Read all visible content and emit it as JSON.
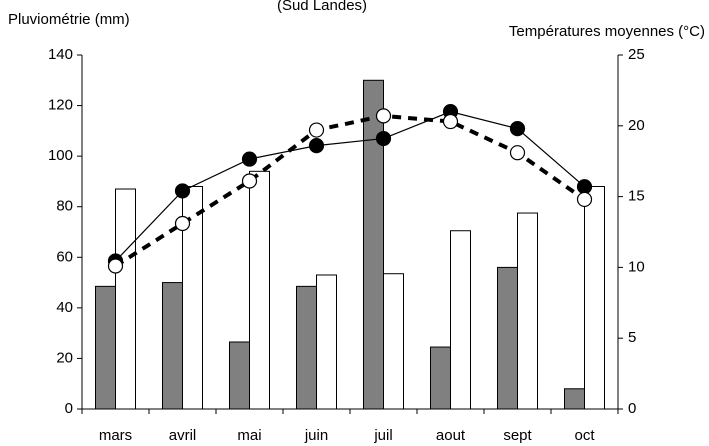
{
  "chart_data": {
    "type": "bar_line",
    "title": "(Sud Landes)",
    "y_label": "Pluviométrie (mm)",
    "y2_label": "Températures moyennes (°C)",
    "categories": [
      "mars",
      "avril",
      "mai",
      "juin",
      "juil",
      "aout",
      "sept",
      "oct"
    ],
    "ylim": [
      0,
      140
    ],
    "yticks": [
      0,
      20,
      40,
      60,
      80,
      100,
      120,
      140
    ],
    "y2lim": [
      0,
      25
    ],
    "y2ticks": [
      0,
      5,
      10,
      15,
      20,
      25
    ],
    "series": [
      {
        "type": "bar",
        "color": "#808080",
        "values": [
          48.5,
          50,
          26.5,
          48.5,
          130,
          24.5,
          56,
          8
        ]
      },
      {
        "type": "bar",
        "color": "#ffffff",
        "values": [
          87,
          88,
          94,
          53,
          53.5,
          70.5,
          77.5,
          88
        ]
      },
      {
        "type": "line",
        "axis": "y2",
        "color": "#000000",
        "marker": "filled",
        "dash": false,
        "values": [
          10.45,
          15.4,
          17.65,
          18.6,
          19.1,
          21.0,
          19.8,
          15.7
        ]
      },
      {
        "type": "line",
        "axis": "y2",
        "color": "#000000",
        "marker": "open",
        "dash": true,
        "values": [
          10.1,
          13.1,
          16.1,
          19.7,
          20.7,
          20.3,
          18.1,
          14.8
        ]
      }
    ]
  }
}
